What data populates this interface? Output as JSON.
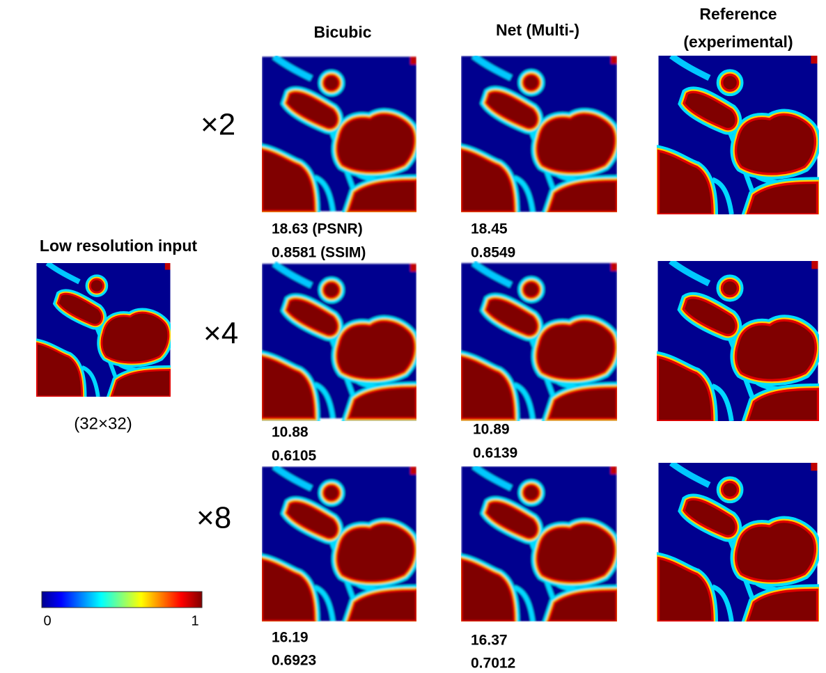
{
  "header": {
    "columns": [
      [
        "Bicubic"
      ],
      [
        "Net (Multi-)"
      ],
      [
        "Reference",
        "(experimental)"
      ]
    ]
  },
  "input": {
    "title": "Low resolution input",
    "size": "(32×32)"
  },
  "rows": [
    {
      "label": "×2",
      "metrics": [
        [
          "18.63 (PSNR)",
          "0.8581 (SSIM)"
        ],
        [
          "18.45",
          "0.8549"
        ]
      ]
    },
    {
      "label": "×4",
      "metrics": [
        [
          "10.88",
          "0.6105"
        ],
        [
          "10.89",
          "0.6139"
        ]
      ]
    },
    {
      "label": "×8",
      "metrics": [
        [
          "16.19",
          "0.6923"
        ],
        [
          "16.37",
          "0.7012"
        ]
      ]
    }
  ],
  "colorbar": {
    "min": 0,
    "max": 1
  }
}
